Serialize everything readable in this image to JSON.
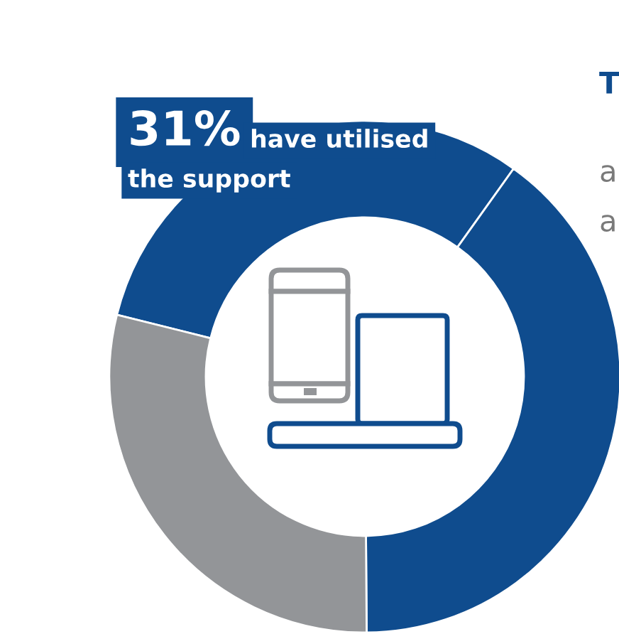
{
  "chart_data": {
    "type": "donut",
    "categories": [
      "have utilised the support",
      null,
      null
    ],
    "values": [
      31,
      40,
      29
    ],
    "colors": [
      "#0f4c8e",
      "#0f4c8e",
      "#939598"
    ],
    "value_labels": [
      "31%",
      null,
      null
    ],
    "annotations": [
      "T",
      "a",
      "a"
    ]
  }
}
